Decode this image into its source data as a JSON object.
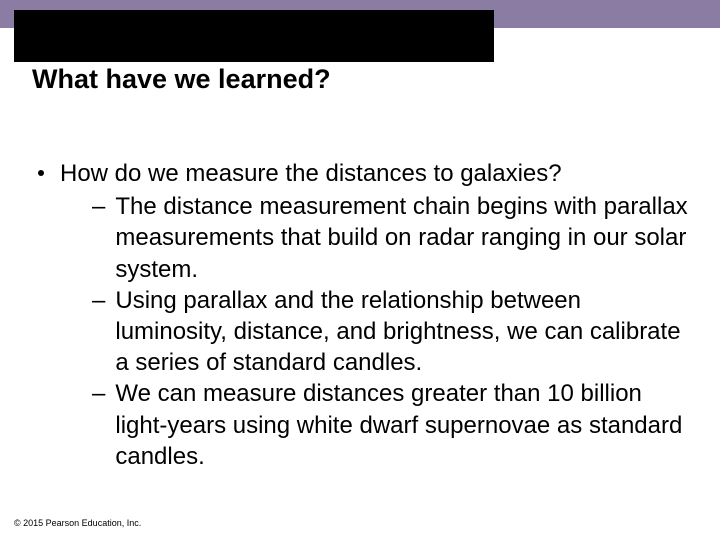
{
  "slide": {
    "title": "What have we learned?",
    "bullet": "How do we measure the distances to galaxies?",
    "subs": [
      "The distance measurement chain begins with parallax measurements that build on radar ranging in our solar system.",
      "Using parallax and the relationship between luminosity, distance, and brightness, we can calibrate a series of standard candles.",
      "We can measure distances greater than 10 billion light-years using white dwarf supernovae as standard candles."
    ],
    "copyright": "© 2015 Pearson Education, Inc."
  },
  "colors": {
    "title_bar": "#8b7ca3",
    "title_box": "#000000",
    "text": "#000000",
    "background": "#ffffff"
  },
  "typography": {
    "title_fontsize": 27,
    "body_fontsize": 24,
    "copyright_fontsize": 9,
    "font_family": "Arial"
  }
}
